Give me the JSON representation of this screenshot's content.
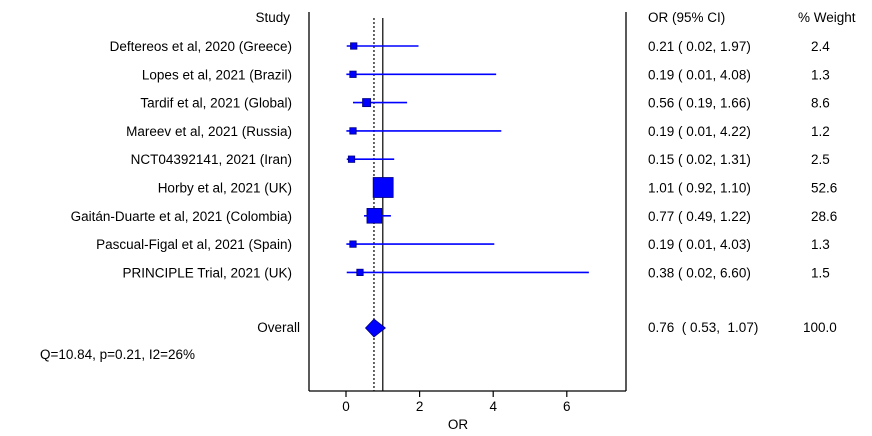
{
  "chart_data": {
    "type": "forest",
    "headers": {
      "study": "Study",
      "or_ci": "OR (95% CI)",
      "weight": "% Weight"
    },
    "studies": [
      {
        "label": "Deftereos et al, 2020 (Greece)",
        "or": 0.21,
        "lower": 0.02,
        "upper": 1.97,
        "ci_text": "0.21  ( 0.02,  1.97)",
        "weight": 2.4,
        "weight_text": "2.4"
      },
      {
        "label": "Lopes et al, 2021 (Brazil)",
        "or": 0.19,
        "lower": 0.01,
        "upper": 4.08,
        "ci_text": "0.19  ( 0.01,  4.08)",
        "weight": 1.3,
        "weight_text": "1.3"
      },
      {
        "label": "Tardif et al, 2021 (Global)",
        "or": 0.56,
        "lower": 0.19,
        "upper": 1.66,
        "ci_text": "0.56  ( 0.19,  1.66)",
        "weight": 8.6,
        "weight_text": "8.6"
      },
      {
        "label": "Mareev et al, 2021 (Russia)",
        "or": 0.19,
        "lower": 0.01,
        "upper": 4.22,
        "ci_text": "0.19  ( 0.01,  4.22)",
        "weight": 1.2,
        "weight_text": "1.2"
      },
      {
        "label": "NCT04392141, 2021 (Iran)",
        "or": 0.15,
        "lower": 0.02,
        "upper": 1.31,
        "ci_text": "0.15  ( 0.02,  1.31)",
        "weight": 2.5,
        "weight_text": "2.5"
      },
      {
        "label": "Horby et al, 2021 (UK)",
        "or": 1.01,
        "lower": 0.92,
        "upper": 1.1,
        "ci_text": "1.01  ( 0.92,  1.10)",
        "weight": 52.6,
        "weight_text": "52.6"
      },
      {
        "label": "Gaitán-Duarte et al, 2021 (Colombia)",
        "or": 0.77,
        "lower": 0.49,
        "upper": 1.22,
        "ci_text": "0.77  ( 0.49,  1.22)",
        "weight": 28.6,
        "weight_text": "28.6"
      },
      {
        "label": "Pascual-Figal et al, 2021 (Spain)",
        "or": 0.19,
        "lower": 0.01,
        "upper": 4.03,
        "ci_text": "0.19  ( 0.01,  4.03)",
        "weight": 1.3,
        "weight_text": "1.3"
      },
      {
        "label": "PRINCIPLE Trial, 2021 (UK)",
        "or": 0.38,
        "lower": 0.02,
        "upper": 6.6,
        "ci_text": "0.38  ( 0.02,  6.60)",
        "weight": 1.5,
        "weight_text": "1.5"
      }
    ],
    "overall": {
      "label": "Overall",
      "or": 0.76,
      "lower": 0.53,
      "upper": 1.07,
      "ci_text": "0.76  ( 0.53,  1.07)",
      "weight": 100.0,
      "weight_text": "100.0"
    },
    "heterogeneity": "Q=10.84, p=0.21, I2=26%",
    "xlabel": "OR",
    "xlim": [
      -1,
      7.7
    ],
    "xticks": [
      0,
      2,
      4,
      6
    ],
    "xtick_labels": [
      "0",
      "2",
      "4",
      "6"
    ],
    "null_line": 1,
    "colors": {
      "marker": "#0000FF",
      "line": "#0000FF",
      "outline": "#000080",
      "axis": "#000000"
    }
  }
}
